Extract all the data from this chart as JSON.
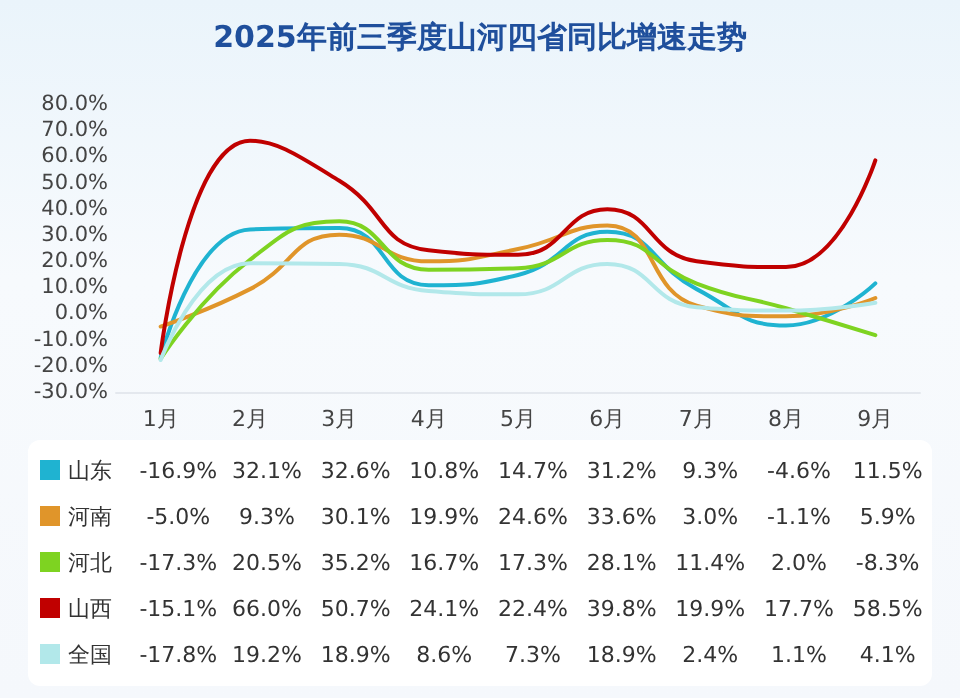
{
  "chart_data": {
    "type": "line",
    "title": "2025年前三季度山河四省同比增速走势",
    "categories": [
      "1月",
      "2月",
      "3月",
      "4月",
      "5月",
      "6月",
      "7月",
      "8月",
      "9月"
    ],
    "series": [
      {
        "name": "山东",
        "color": "#1fb3d1",
        "values": [
          -16.9,
          32.1,
          32.6,
          10.8,
          14.7,
          31.2,
          9.3,
          -4.6,
          11.5
        ],
        "value_labels": [
          "-16.9%",
          "32.1%",
          "32.6%",
          "10.8%",
          "14.7%",
          "31.2%",
          "9.3%",
          "-4.6%",
          "11.5%"
        ]
      },
      {
        "name": "河南",
        "color": "#e0952a",
        "values": [
          -5.0,
          9.3,
          30.1,
          19.9,
          24.6,
          33.6,
          3.0,
          -1.1,
          5.9
        ],
        "value_labels": [
          "-5.0%",
          "9.3%",
          "30.1%",
          "19.9%",
          "24.6%",
          "33.6%",
          "3.0%",
          "-1.1%",
          "5.9%"
        ]
      },
      {
        "name": "河北",
        "color": "#7ed321",
        "values": [
          -17.3,
          20.5,
          35.2,
          16.7,
          17.3,
          28.1,
          11.4,
          2.0,
          -8.3
        ],
        "value_labels": [
          "-17.3%",
          "20.5%",
          "35.2%",
          "16.7%",
          "17.3%",
          "28.1%",
          "11.4%",
          "2.0%",
          "-8.3%"
        ]
      },
      {
        "name": "山西",
        "color": "#c00000",
        "values": [
          -15.1,
          66.0,
          50.7,
          24.1,
          22.4,
          39.8,
          19.9,
          17.7,
          58.5
        ],
        "value_labels": [
          "-15.1%",
          "66.0%",
          "50.7%",
          "24.1%",
          "22.4%",
          "39.8%",
          "19.9%",
          "17.7%",
          "58.5%"
        ]
      },
      {
        "name": "全国",
        "color": "#b2e8ea",
        "values": [
          -17.8,
          19.2,
          18.9,
          8.6,
          7.3,
          18.9,
          2.4,
          1.1,
          4.1
        ],
        "value_labels": [
          "-17.8%",
          "19.2%",
          "18.9%",
          "8.6%",
          "7.3%",
          "18.9%",
          "2.4%",
          "1.1%",
          "4.1%"
        ]
      }
    ],
    "ylim": [
      -30,
      80
    ],
    "yticks": [
      {
        "value": -30,
        "label": "-30.0%"
      },
      {
        "value": -20,
        "label": "-20.0%"
      },
      {
        "value": -10,
        "label": "-10.0%"
      },
      {
        "value": 0,
        "label": "0.0%"
      },
      {
        "value": 10,
        "label": "10.0%"
      },
      {
        "value": 20,
        "label": "20.0%"
      },
      {
        "value": 30,
        "label": "30.0%"
      },
      {
        "value": 40,
        "label": "40.0%"
      },
      {
        "value": 50,
        "label": "50.0%"
      },
      {
        "value": 60,
        "label": "60.0%"
      },
      {
        "value": 70,
        "label": "70.0%"
      },
      {
        "value": 80,
        "label": "80.0%"
      }
    ],
    "grid": false,
    "legend": "bottom",
    "marker": "none",
    "line_style": "solid"
  }
}
